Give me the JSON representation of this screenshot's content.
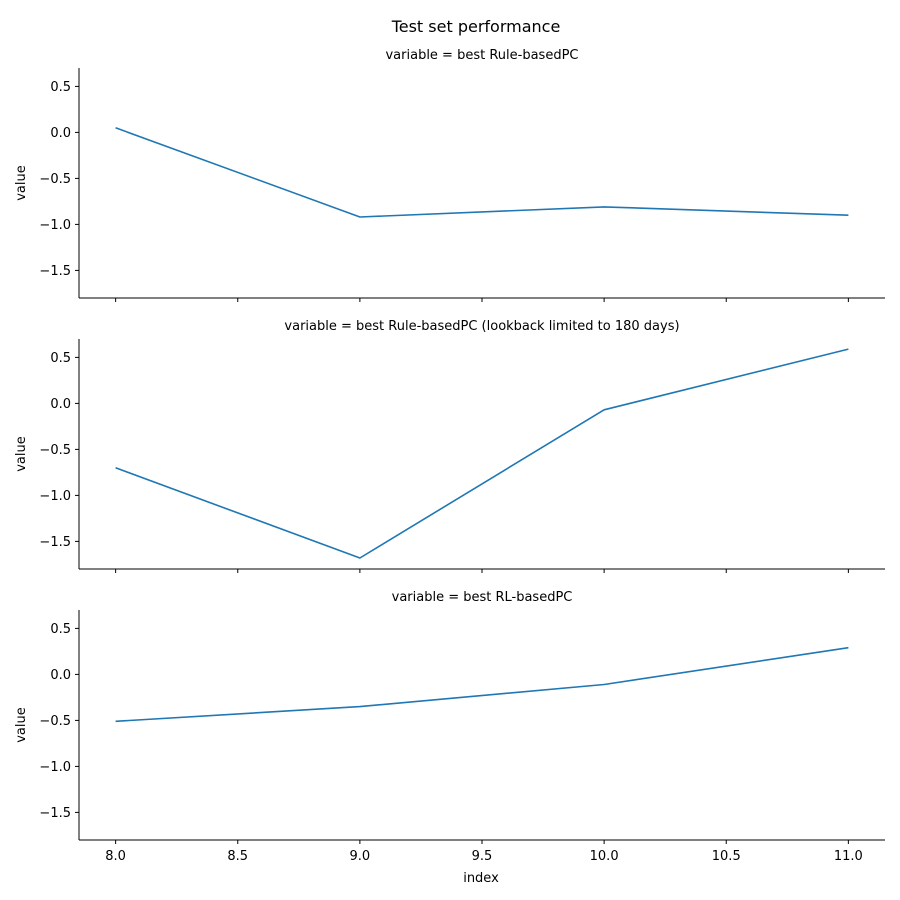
{
  "chart_data": {
    "type": "line",
    "title": "Test set performance",
    "xlabel": "index",
    "ylabel": "value",
    "x": [
      8.0,
      9.0,
      10.0,
      11.0
    ],
    "xlim": [
      7.85,
      11.15
    ],
    "ylim": [
      -1.8,
      0.7
    ],
    "xticks": [
      "8.0",
      "8.5",
      "9.0",
      "9.5",
      "10.0",
      "10.5",
      "11.0"
    ],
    "xtick_values": [
      8.0,
      8.5,
      9.0,
      9.5,
      10.0,
      10.5,
      11.0
    ],
    "yticks": [
      "0.5",
      "0.0",
      "−0.5",
      "−1.0",
      "−1.5"
    ],
    "ytick_values": [
      0.5,
      0.0,
      -0.5,
      -1.0,
      -1.5
    ],
    "line_color": "#1f77b4",
    "grid": false,
    "panels": [
      {
        "title": "variable = best Rule-basedPC",
        "values": [
          0.05,
          -0.92,
          -0.81,
          -0.9
        ]
      },
      {
        "title": "variable = best Rule-basedPC (lookback limited to 180 days)",
        "values": [
          -0.7,
          -1.68,
          -0.07,
          0.59
        ]
      },
      {
        "title": "variable = best RL-basedPC",
        "values": [
          -0.51,
          -0.35,
          -0.11,
          0.29
        ]
      }
    ]
  }
}
